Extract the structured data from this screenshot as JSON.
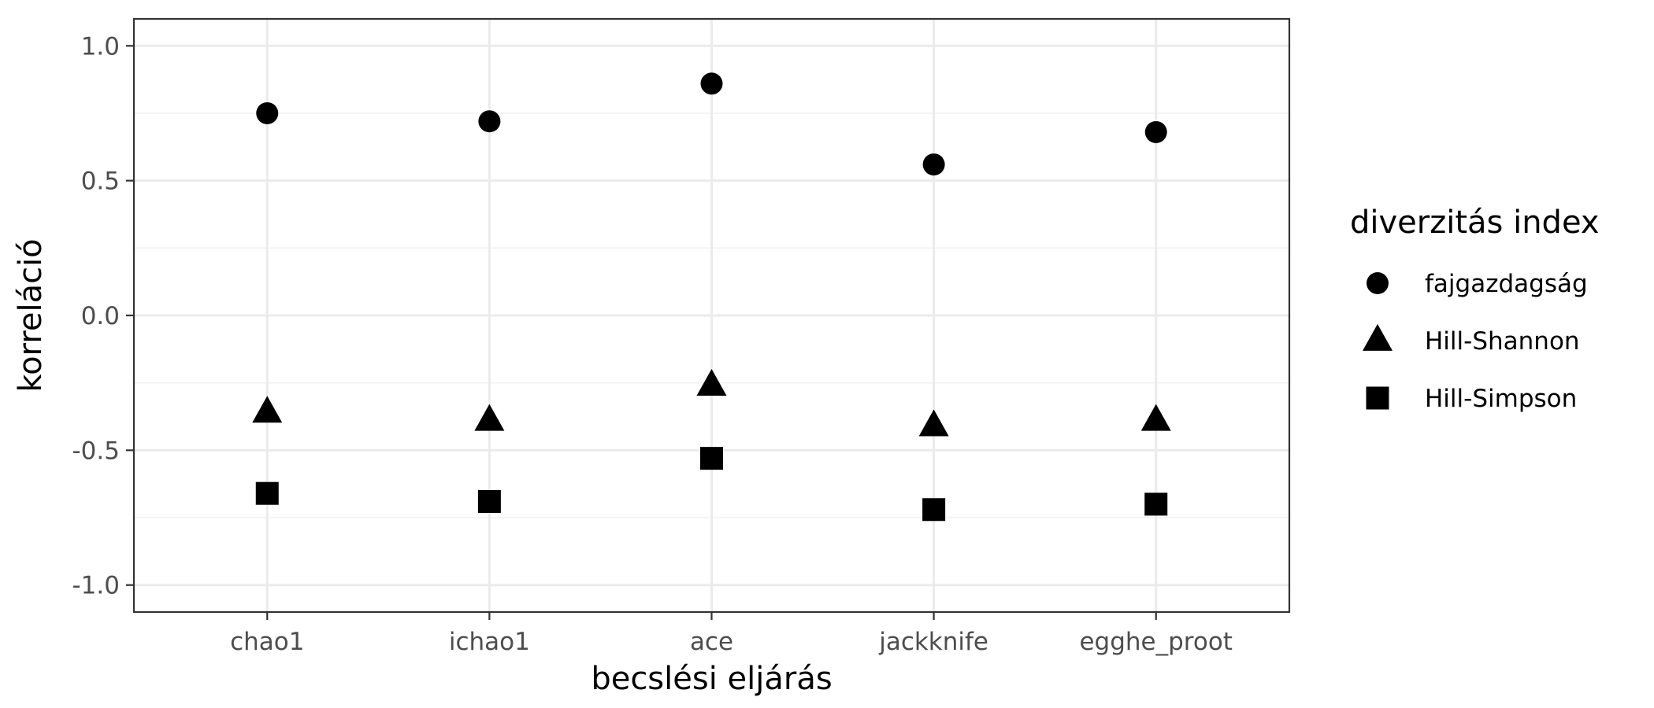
{
  "chart_data": {
    "type": "scatter",
    "title": "",
    "xlabel": "becslési eljárás",
    "ylabel": "korreláció",
    "categories": [
      "chao1",
      "ichao1",
      "ace",
      "jackknife",
      "egghe_proot"
    ],
    "ylim": [
      -1.1,
      1.1
    ],
    "yticks": [
      "1.0",
      "0.5",
      "0.0",
      "-0.5",
      "-1.0"
    ],
    "ytick_values": [
      1.0,
      0.5,
      0.0,
      -0.5,
      -1.0
    ],
    "grid": true,
    "legend": {
      "title": "diverzitás index",
      "position": "right"
    },
    "series": [
      {
        "name": "fajgazdagság",
        "marker": "circle",
        "values": [
          0.75,
          0.72,
          0.86,
          0.56,
          0.68
        ]
      },
      {
        "name": "Hill-Shannon",
        "marker": "triangle",
        "values": [
          -0.36,
          -0.39,
          -0.26,
          -0.41,
          -0.39
        ]
      },
      {
        "name": "Hill-Simpson",
        "marker": "square",
        "values": [
          -0.66,
          -0.69,
          -0.53,
          -0.72,
          -0.7
        ]
      }
    ],
    "colors": {
      "marker": "#000000",
      "panel_border": "#333333",
      "grid_major": "#ebebeb",
      "grid_minor": "#f2f2f2",
      "tick_text": "#4d4d4d"
    }
  }
}
